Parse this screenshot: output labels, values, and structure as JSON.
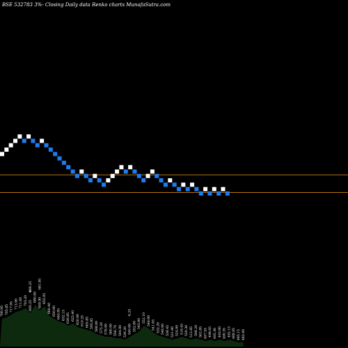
{
  "header": "BSE 532783 3%-  Closing Daily data  Renko  charts MunafaSutra.com",
  "chart_data": {
    "type": "renko",
    "title": "BSE 532783 3%-  Closing Daily data  Renko  charts MunafaSutra.com",
    "colors": {
      "up_brick": "#ffffff",
      "down_brick": "#1e7bf0",
      "reference_line": "#b8740f",
      "volume_fill": "#0e2a0e",
      "volume_labels": "#ffffff",
      "background": "#000000"
    },
    "bricks": [
      {
        "dir": "up",
        "row": 13
      },
      {
        "dir": "up",
        "row": 14
      },
      {
        "dir": "up",
        "row": 15
      },
      {
        "dir": "up",
        "row": 16
      },
      {
        "dir": "up",
        "row": 17
      },
      {
        "dir": "down",
        "row": 16
      },
      {
        "dir": "up",
        "row": 17
      },
      {
        "dir": "down",
        "row": 16
      },
      {
        "dir": "down",
        "row": 15
      },
      {
        "dir": "up",
        "row": 16
      },
      {
        "dir": "down",
        "row": 15
      },
      {
        "dir": "down",
        "row": 14
      },
      {
        "dir": "down",
        "row": 13
      },
      {
        "dir": "down",
        "row": 12
      },
      {
        "dir": "down",
        "row": 11
      },
      {
        "dir": "down",
        "row": 10
      },
      {
        "dir": "down",
        "row": 9
      },
      {
        "dir": "down",
        "row": 8
      },
      {
        "dir": "up",
        "row": 9
      },
      {
        "dir": "down",
        "row": 8
      },
      {
        "dir": "down",
        "row": 7
      },
      {
        "dir": "up",
        "row": 8
      },
      {
        "dir": "down",
        "row": 7
      },
      {
        "dir": "down",
        "row": 6
      },
      {
        "dir": "up",
        "row": 7
      },
      {
        "dir": "up",
        "row": 8
      },
      {
        "dir": "up",
        "row": 9
      },
      {
        "dir": "up",
        "row": 10
      },
      {
        "dir": "down",
        "row": 9
      },
      {
        "dir": "up",
        "row": 10
      },
      {
        "dir": "down",
        "row": 9
      },
      {
        "dir": "down",
        "row": 8
      },
      {
        "dir": "down",
        "row": 7
      },
      {
        "dir": "up",
        "row": 8
      },
      {
        "dir": "up",
        "row": 9
      },
      {
        "dir": "down",
        "row": 8
      },
      {
        "dir": "down",
        "row": 7
      },
      {
        "dir": "down",
        "row": 6
      },
      {
        "dir": "up",
        "row": 7
      },
      {
        "dir": "down",
        "row": 6
      },
      {
        "dir": "down",
        "row": 5
      },
      {
        "dir": "up",
        "row": 6
      },
      {
        "dir": "down",
        "row": 5
      },
      {
        "dir": "up",
        "row": 6
      },
      {
        "dir": "down",
        "row": 5
      },
      {
        "dir": "down",
        "row": 4
      },
      {
        "dir": "up",
        "row": 5
      },
      {
        "dir": "down",
        "row": 4
      },
      {
        "dir": "up",
        "row": 5
      },
      {
        "dir": "down",
        "row": 4
      },
      {
        "dir": "up",
        "row": 5
      },
      {
        "dir": "down",
        "row": 4
      }
    ],
    "reference_lines": [
      {
        "label": "upper",
        "level_row": 8.0
      },
      {
        "label": "lower",
        "level_row": 4.0
      }
    ],
    "volume": [
      {
        "h": 40,
        "label": "700.95"
      },
      {
        "h": 42,
        "label": "705.85"
      },
      {
        "h": 46,
        "label": "717.05"
      },
      {
        "h": 50,
        "label": "713.90"
      },
      {
        "h": 52,
        "label": "711.00"
      },
      {
        "h": 55,
        "label": "703.20"
      },
      {
        "h": 48,
        "label": "695.25"
      },
      {
        "h": 60,
        "label": "680.00"
      },
      {
        "h": 52,
        "label": "650.90"
      },
      {
        "h": 58,
        "label": "655.05"
      },
      {
        "h": 44,
        "label": "660.40"
      },
      {
        "h": 40,
        "label": "650.60"
      },
      {
        "h": 36,
        "label": "640.85"
      },
      {
        "h": 34,
        "label": "632.15"
      },
      {
        "h": 30,
        "label": "630.85"
      },
      {
        "h": 33,
        "label": "625.40"
      },
      {
        "h": 28,
        "label": "620.00"
      },
      {
        "h": 26,
        "label": "610.25"
      },
      {
        "h": 24,
        "label": "605.85"
      },
      {
        "h": 22,
        "label": "595.85"
      },
      {
        "h": 18,
        "label": "588.00"
      },
      {
        "h": 16,
        "label": "575.20"
      },
      {
        "h": 14,
        "label": "576.00"
      },
      {
        "h": 14,
        "label": "560.00"
      },
      {
        "h": 12,
        "label": "556.70"
      },
      {
        "h": 12,
        "label": "544.00"
      },
      {
        "h": 10,
        "label": "536.20"
      },
      {
        "h": 14,
        "label": "540.00"
      },
      {
        "h": 18,
        "label": "552.00"
      },
      {
        "h": 22,
        "label": "545.00"
      },
      {
        "h": 30,
        "label": "552.10"
      },
      {
        "h": 26,
        "label": "548.00"
      },
      {
        "h": 20,
        "label": "541.05"
      },
      {
        "h": 16,
        "label": "532.20"
      },
      {
        "h": 14,
        "label": "548.00"
      },
      {
        "h": 12,
        "label": "538.45"
      },
      {
        "h": 10,
        "label": "531.00"
      },
      {
        "h": 12,
        "label": "524.00"
      },
      {
        "h": 14,
        "label": "518.45"
      },
      {
        "h": 12,
        "label": "520.30"
      },
      {
        "h": 10,
        "label": "512.85"
      },
      {
        "h": 12,
        "label": "508.20"
      },
      {
        "h": 10,
        "label": "502.85"
      },
      {
        "h": 8,
        "label": "497.55"
      },
      {
        "h": 10,
        "label": "498.05"
      },
      {
        "h": 8,
        "label": "495.30"
      },
      {
        "h": 10,
        "label": "493.00"
      },
      {
        "h": 8,
        "label": "490.35"
      },
      {
        "h": 10,
        "label": "492.15"
      },
      {
        "h": 8,
        "label": "488.05"
      },
      {
        "h": 6,
        "label": "485.15"
      },
      {
        "h": 6,
        "label": "482.00"
      }
    ],
    "extra_labels": [
      {
        "text": "666.25",
        "col": 6
      },
      {
        "text": "681.85",
        "col": 8
      },
      {
        "text": "4",
        "col": 6
      },
      {
        "text": "6.25",
        "col": 27
      }
    ]
  }
}
